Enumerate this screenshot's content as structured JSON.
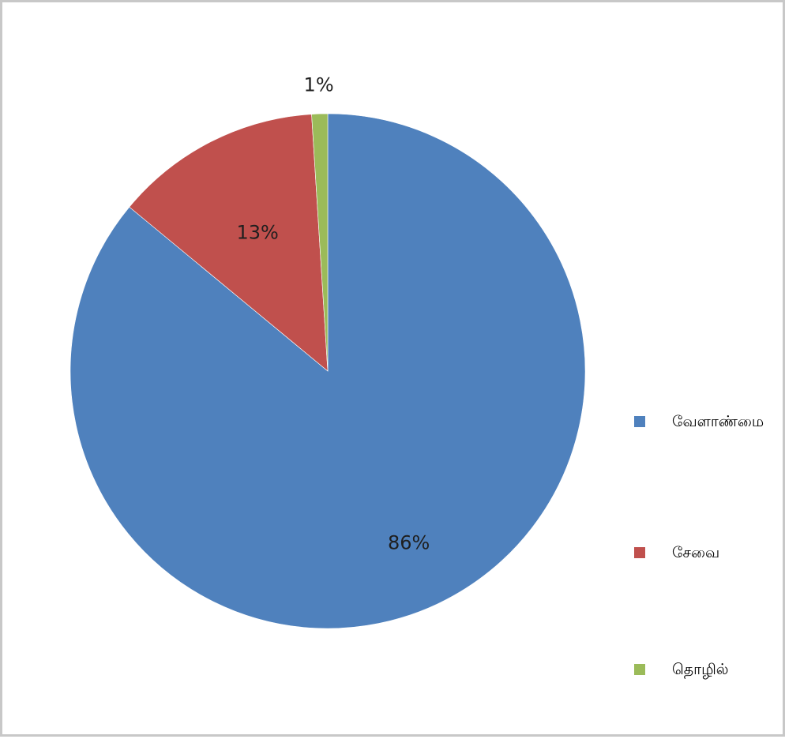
{
  "chart_data": {
    "type": "pie",
    "title": "",
    "categories": [
      "வேளாண்மை",
      "சேவை",
      "தொழில்"
    ],
    "values": [
      86,
      13,
      1
    ],
    "data_labels": [
      "86%",
      "13%",
      "1%"
    ],
    "colors": [
      "#4f81bd",
      "#c0504d",
      "#9bbb59"
    ],
    "legend_position": "right"
  }
}
